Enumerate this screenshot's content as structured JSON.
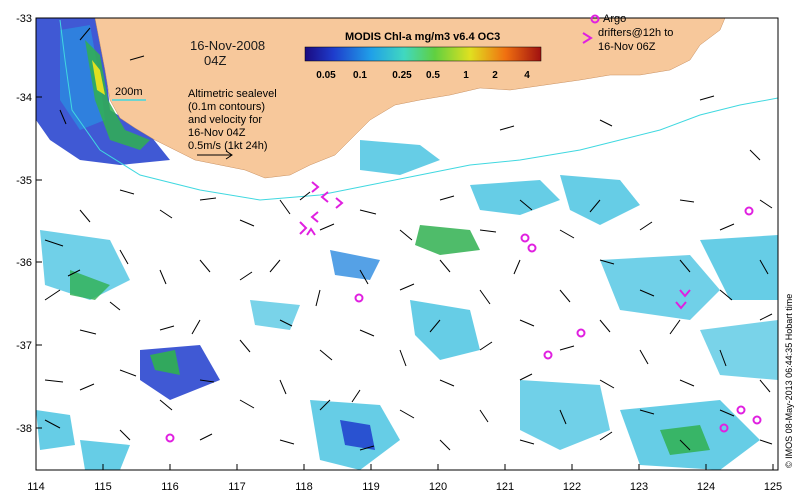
{
  "map": {
    "date_line1": "16-Nov-2008",
    "date_line2": "04Z",
    "colorbar_title": "MODIS Chl-a mg/m3 v6.4 OC3",
    "colorbar_labels": [
      "0.05",
      "0.1",
      "0.25",
      "0.5",
      "1",
      "2",
      "4"
    ],
    "contour_label": "200m",
    "altimetry_note": [
      "Altimetric sealevel",
      "(0.1m contours)",
      "and velocity for",
      "16-Nov 04Z",
      "0.5m/s (1kt 24h)"
    ],
    "argo_legend": [
      "Argo",
      "drifters@12h to",
      "16-Nov 06Z"
    ],
    "credit": "© IMOS 08-May-2013 06:44:35 Hobart time",
    "lon_ticks": [
      "114",
      "115",
      "116",
      "117",
      "118",
      "119",
      "120",
      "121",
      "122",
      "123",
      "124",
      "125"
    ],
    "lat_ticks": [
      "-33",
      "-34",
      "-35",
      "-36",
      "-37",
      "-38"
    ],
    "colors": {
      "land": "#f7c89b",
      "argo": "#e020e0",
      "contour": "#40d8e0",
      "chl_low": "#1e3ccc",
      "chl_mid": "#40c0e0",
      "chl_high": "#30b050"
    }
  }
}
